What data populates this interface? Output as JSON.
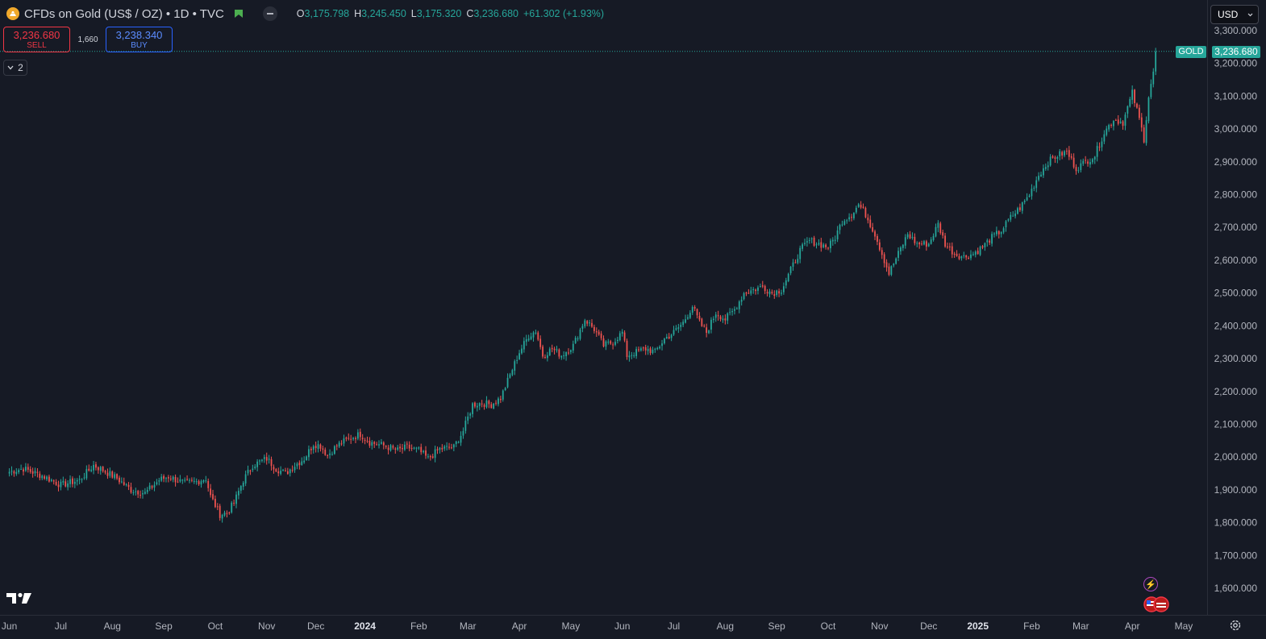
{
  "header": {
    "symbol_title": "CFDs on Gold (US$ / OZ) • 1D • TVC",
    "ohlc": {
      "open_label": "O",
      "open": "3,175.798",
      "high_label": "H",
      "high": "3,245.450",
      "low_label": "L",
      "low": "3,175.320",
      "close_label": "C",
      "close": "3,236.680",
      "change": "+61.302 (+1.93%)"
    },
    "icons": [
      "gold-logo-icon",
      "flag-icon",
      "minus-icon"
    ]
  },
  "trade": {
    "sell_price": "3,236.680",
    "sell_label": "SELL",
    "spread": "1,660",
    "buy_price": "3,238.340",
    "buy_label": "BUY"
  },
  "indicators_toggle": {
    "count": "2"
  },
  "currency": {
    "selected": "USD"
  },
  "last_price": {
    "symbol": "GOLD",
    "value": "3,236.680"
  },
  "colors": {
    "up": "#26a69a",
    "down": "#ef5350",
    "background": "#161a25",
    "sell": "#f23645",
    "buy": "#2962ff"
  },
  "chart_data": {
    "type": "candlestick",
    "ylim": [
      1540,
      3330
    ],
    "y_ticks": [
      "3,300.000",
      "3,200.000",
      "3,100.000",
      "3,000.000",
      "2,900.000",
      "2,800.000",
      "2,700.000",
      "2,600.000",
      "2,500.000",
      "2,400.000",
      "2,300.000",
      "2,200.000",
      "2,100.000",
      "2,000.000",
      "1,900.000",
      "1,800.000",
      "1,700.000",
      "1,600.000"
    ],
    "y_tick_values": [
      3300,
      3200,
      3100,
      3000,
      2900,
      2800,
      2700,
      2600,
      2500,
      2400,
      2300,
      2200,
      2100,
      2000,
      1900,
      1800,
      1700,
      1600
    ],
    "x_ticks": [
      "Jun",
      "Jul",
      "Aug",
      "Sep",
      "Oct",
      "Nov",
      "Dec",
      "2024",
      "Feb",
      "Mar",
      "Apr",
      "May",
      "Jun",
      "Jul",
      "Aug",
      "Sep",
      "Oct",
      "Nov",
      "Dec",
      "2025",
      "Feb",
      "Mar",
      "Apr",
      "May"
    ],
    "x_tick_bold": [
      "2024",
      "2025"
    ],
    "x_tick_days": [
      0,
      22,
      44,
      66,
      88,
      110,
      131,
      152,
      175,
      196,
      218,
      240,
      262,
      284,
      306,
      328,
      350,
      372,
      393,
      414,
      437,
      458,
      480,
      502
    ],
    "day_range": [
      -4,
      512
    ],
    "close_path": [
      [
        0,
        1955
      ],
      [
        6,
        1965
      ],
      [
        15,
        1940
      ],
      [
        22,
        1915
      ],
      [
        30,
        1930
      ],
      [
        36,
        1975
      ],
      [
        40,
        1960
      ],
      [
        46,
        1935
      ],
      [
        52,
        1900
      ],
      [
        58,
        1890
      ],
      [
        64,
        1930
      ],
      [
        68,
        1940
      ],
      [
        75,
        1920
      ],
      [
        80,
        1925
      ],
      [
        84,
        1935
      ],
      [
        86,
        1880
      ],
      [
        90,
        1825
      ],
      [
        93,
        1830
      ],
      [
        96,
        1860
      ],
      [
        100,
        1930
      ],
      [
        104,
        1975
      ],
      [
        110,
        1995
      ],
      [
        114,
        1965
      ],
      [
        118,
        1950
      ],
      [
        122,
        1975
      ],
      [
        126,
        1995
      ],
      [
        130,
        2040
      ],
      [
        133,
        2035
      ],
      [
        136,
        2005
      ],
      [
        140,
        2035
      ],
      [
        145,
        2055
      ],
      [
        150,
        2070
      ],
      [
        154,
        2045
      ],
      [
        160,
        2035
      ],
      [
        166,
        2020
      ],
      [
        170,
        2030
      ],
      [
        175,
        2020
      ],
      [
        179,
        1995
      ],
      [
        184,
        2025
      ],
      [
        190,
        2030
      ],
      [
        194,
        2080
      ],
      [
        198,
        2160
      ],
      [
        202,
        2165
      ],
      [
        206,
        2160
      ],
      [
        210,
        2180
      ],
      [
        214,
        2250
      ],
      [
        218,
        2320
      ],
      [
        222,
        2370
      ],
      [
        225,
        2385
      ],
      [
        228,
        2310
      ],
      [
        232,
        2330
      ],
      [
        236,
        2310
      ],
      [
        241,
        2340
      ],
      [
        246,
        2420
      ],
      [
        250,
        2390
      ],
      [
        254,
        2340
      ],
      [
        258,
        2350
      ],
      [
        262,
        2380
      ],
      [
        264,
        2310
      ],
      [
        268,
        2320
      ],
      [
        272,
        2330
      ],
      [
        276,
        2320
      ],
      [
        280,
        2360
      ],
      [
        284,
        2380
      ],
      [
        288,
        2410
      ],
      [
        292,
        2460
      ],
      [
        295,
        2410
      ],
      [
        298,
        2380
      ],
      [
        302,
        2440
      ],
      [
        306,
        2420
      ],
      [
        310,
        2450
      ],
      [
        314,
        2500
      ],
      [
        318,
        2510
      ],
      [
        322,
        2520
      ],
      [
        326,
        2500
      ],
      [
        330,
        2510
      ],
      [
        334,
        2570
      ],
      [
        338,
        2630
      ],
      [
        342,
        2660
      ],
      [
        346,
        2650
      ],
      [
        350,
        2640
      ],
      [
        353,
        2670
      ],
      [
        356,
        2720
      ],
      [
        360,
        2740
      ],
      [
        363,
        2770
      ],
      [
        366,
        2740
      ],
      [
        370,
        2680
      ],
      [
        373,
        2620
      ],
      [
        376,
        2560
      ],
      [
        380,
        2620
      ],
      [
        384,
        2680
      ],
      [
        388,
        2650
      ],
      [
        393,
        2650
      ],
      [
        397,
        2710
      ],
      [
        400,
        2650
      ],
      [
        404,
        2620
      ],
      [
        408,
        2610
      ],
      [
        412,
        2620
      ],
      [
        416,
        2640
      ],
      [
        420,
        2670
      ],
      [
        424,
        2690
      ],
      [
        428,
        2730
      ],
      [
        432,
        2760
      ],
      [
        436,
        2800
      ],
      [
        440,
        2860
      ],
      [
        444,
        2900
      ],
      [
        448,
        2920
      ],
      [
        452,
        2930
      ],
      [
        456,
        2880
      ],
      [
        460,
        2900
      ],
      [
        464,
        2920
      ],
      [
        468,
        2990
      ],
      [
        472,
        3030
      ],
      [
        476,
        3020
      ],
      [
        480,
        3110
      ],
      [
        483,
        3030
      ],
      [
        485,
        2970
      ],
      [
        487,
        3100
      ],
      [
        489,
        3175
      ],
      [
        490,
        3236
      ]
    ],
    "seed": 7
  }
}
